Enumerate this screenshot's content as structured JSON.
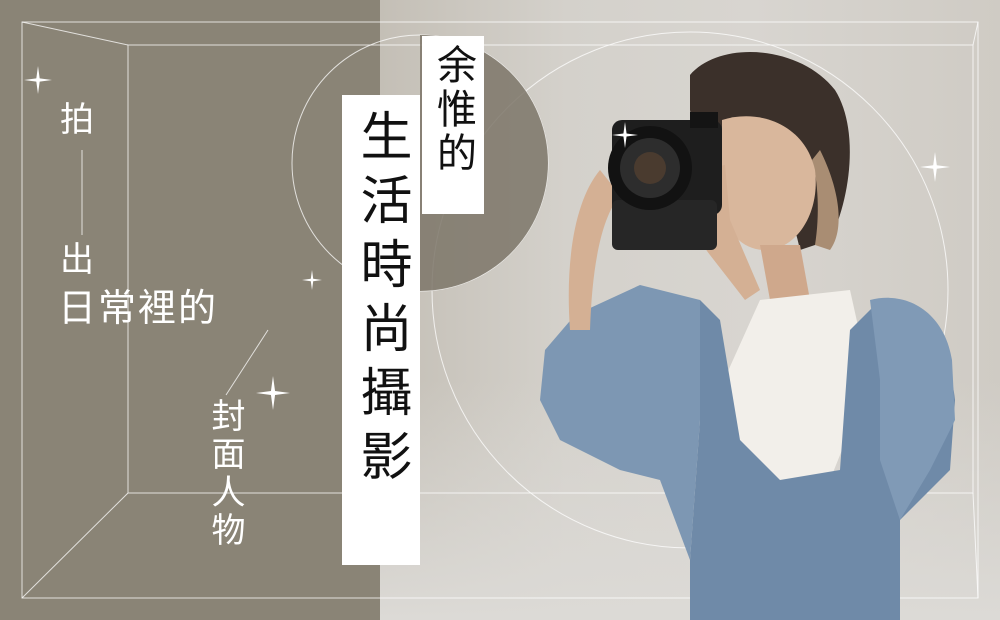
{
  "poster": {
    "title_name": "余惟的",
    "title_main": "生活時尚攝影",
    "line_1": "拍",
    "line_2": "出",
    "line_3": "日常裡的",
    "line_4": "封面人物"
  },
  "colors": {
    "taupe_background": "#8a8476",
    "light_wall": "#d6d3cd",
    "title_box": "#ffffff",
    "title_text": "#111111",
    "line_art": "#ffffff"
  },
  "icons": [
    "sparkle-icon"
  ]
}
